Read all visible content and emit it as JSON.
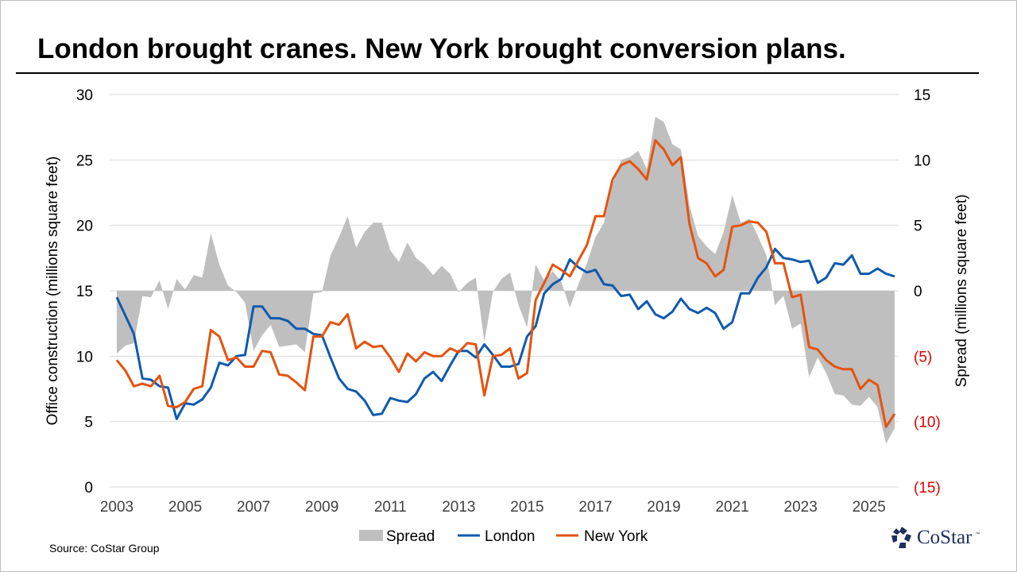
{
  "title": "London brought cranes. New York brought conversion plans.",
  "source": "Source: CoStar Group",
  "logo_text": "CoStar",
  "logo_tm": "™",
  "colors": {
    "london": "#0f5aad",
    "new_york": "#e4530f",
    "spread": "#bfbfbf",
    "negative_tick": "#e00000",
    "grid": "#d9d9d9"
  },
  "chart_data": {
    "type": "line",
    "title": "London brought cranes. New York brought conversion plans.",
    "ylabel": "Office construction (millions square feet)",
    "y2label": "Spread (millions square feet)",
    "ylim": [
      0,
      30
    ],
    "y2lim": [
      -15,
      15
    ],
    "yticks": [
      "0",
      "5",
      "10",
      "15",
      "20",
      "25",
      "30"
    ],
    "y2ticks": [
      "(15)",
      "(10)",
      "(5)",
      "0",
      "5",
      "10",
      "15"
    ],
    "y2tick_values": [
      -15,
      -10,
      -5,
      0,
      5,
      10,
      15
    ],
    "xticks": [
      "2003",
      "2005",
      "2007",
      "2009",
      "2011",
      "2013",
      "2015",
      "2017",
      "2019",
      "2021",
      "2023",
      "2025"
    ],
    "grid": true,
    "legend_position": "bottom",
    "x": [
      2003.0,
      2003.25,
      2003.5,
      2003.75,
      2004.0,
      2004.25,
      2004.5,
      2004.75,
      2005.0,
      2005.25,
      2005.5,
      2005.75,
      2006.0,
      2006.25,
      2006.5,
      2006.75,
      2007.0,
      2007.25,
      2007.5,
      2007.75,
      2008.0,
      2008.25,
      2008.5,
      2008.75,
      2009.0,
      2009.25,
      2009.5,
      2009.75,
      2010.0,
      2010.25,
      2010.5,
      2010.75,
      2011.0,
      2011.25,
      2011.5,
      2011.75,
      2012.0,
      2012.25,
      2012.5,
      2012.75,
      2013.0,
      2013.25,
      2013.5,
      2013.75,
      2014.0,
      2014.25,
      2014.5,
      2014.75,
      2015.0,
      2015.25,
      2015.5,
      2015.75,
      2016.0,
      2016.25,
      2016.5,
      2016.75,
      2017.0,
      2017.25,
      2017.5,
      2017.75,
      2018.0,
      2018.25,
      2018.5,
      2018.75,
      2019.0,
      2019.25,
      2019.5,
      2019.75,
      2020.0,
      2020.25,
      2020.5,
      2020.75,
      2021.0,
      2021.25,
      2021.5,
      2021.75,
      2022.0,
      2022.25,
      2022.5,
      2022.75,
      2023.0,
      2023.25,
      2023.5,
      2023.75,
      2024.0,
      2024.25,
      2024.5,
      2024.75,
      2025.0,
      2025.25,
      2025.5,
      2025.75
    ],
    "series": [
      {
        "name": "Spread",
        "type": "area",
        "axis": "right",
        "values": [
          -4.8,
          -4.2,
          -4.0,
          -0.4,
          -0.5,
          0.8,
          -1.4,
          0.9,
          0.1,
          1.2,
          1.0,
          4.4,
          2.0,
          0.4,
          -0.1,
          -0.9,
          -4.6,
          -3.4,
          -2.6,
          -4.3,
          -4.2,
          -4.1,
          -4.7,
          -0.2,
          -0.1,
          2.7,
          4.1,
          5.7,
          3.3,
          4.5,
          5.2,
          5.2,
          3.1,
          2.2,
          3.7,
          2.5,
          2.0,
          1.2,
          1.9,
          1.3,
          -0.1,
          0.6,
          1.0,
          -3.9,
          -0.1,
          0.9,
          1.4,
          -1.1,
          -2.8,
          2.0,
          0.8,
          1.5,
          0.7,
          -1.3,
          0.5,
          2.1,
          4.1,
          5.2,
          8.1,
          10.0,
          10.2,
          10.7,
          9.3,
          13.3,
          12.9,
          11.2,
          10.8,
          6.5,
          4.2,
          3.4,
          2.8,
          4.5,
          7.3,
          5.2,
          5.5,
          4.2,
          2.7,
          -1.1,
          -0.4,
          -2.9,
          -2.5,
          -6.6,
          -5.1,
          -6.3,
          -7.9,
          -8.0,
          -8.7,
          -8.8,
          -8.1,
          -8.9,
          -11.7,
          -10.5
        ]
      },
      {
        "name": "London",
        "type": "line",
        "axis": "left",
        "values": [
          14.5,
          13.1,
          11.7,
          8.3,
          8.2,
          7.7,
          7.6,
          5.2,
          6.4,
          6.3,
          6.7,
          7.6,
          9.5,
          9.3,
          10.0,
          10.1,
          13.8,
          13.8,
          12.9,
          12.9,
          12.7,
          12.1,
          12.1,
          11.7,
          11.6,
          9.9,
          8.3,
          7.5,
          7.3,
          6.6,
          5.5,
          5.6,
          6.8,
          6.6,
          6.5,
          7.1,
          8.3,
          8.8,
          8.1,
          9.3,
          10.4,
          10.4,
          9.9,
          10.9,
          10.1,
          9.2,
          9.2,
          9.4,
          11.5,
          12.3,
          14.8,
          15.5,
          15.9,
          17.4,
          16.8,
          16.4,
          16.6,
          15.5,
          15.4,
          14.6,
          14.7,
          13.6,
          14.2,
          13.2,
          12.9,
          13.4,
          14.4,
          13.6,
          13.3,
          13.7,
          13.3,
          12.1,
          12.6,
          14.8,
          14.8,
          16.0,
          16.8,
          18.2,
          17.5,
          17.4,
          17.2,
          17.3,
          15.6,
          16.0,
          17.1,
          17.0,
          17.7,
          16.3,
          16.3,
          16.7,
          16.3,
          16.1
        ]
      },
      {
        "name": "New York",
        "type": "line",
        "axis": "left",
        "values": [
          9.7,
          8.9,
          7.7,
          7.9,
          7.7,
          8.5,
          6.2,
          6.1,
          6.5,
          7.5,
          7.7,
          12.0,
          11.5,
          9.7,
          9.9,
          9.2,
          9.2,
          10.4,
          10.3,
          8.6,
          8.5,
          8.0,
          7.4,
          11.5,
          11.5,
          12.6,
          12.4,
          13.2,
          10.6,
          11.1,
          10.7,
          10.8,
          9.9,
          8.8,
          10.2,
          9.6,
          10.3,
          10.0,
          10.0,
          10.6,
          10.3,
          11.0,
          10.9,
          7.0,
          10.0,
          10.1,
          10.6,
          8.3,
          8.7,
          14.3,
          15.6,
          17.0,
          16.6,
          16.1,
          17.3,
          18.5,
          20.7,
          20.7,
          23.5,
          24.6,
          24.9,
          24.3,
          23.5,
          26.5,
          25.8,
          24.6,
          25.2,
          20.1,
          17.5,
          17.1,
          16.1,
          16.6,
          19.9,
          20.0,
          20.3,
          20.2,
          19.5,
          17.1,
          17.1,
          14.5,
          14.7,
          10.7,
          10.5,
          9.7,
          9.2,
          9.0,
          9.0,
          7.5,
          8.2,
          7.8,
          4.6,
          5.6
        ]
      }
    ]
  }
}
